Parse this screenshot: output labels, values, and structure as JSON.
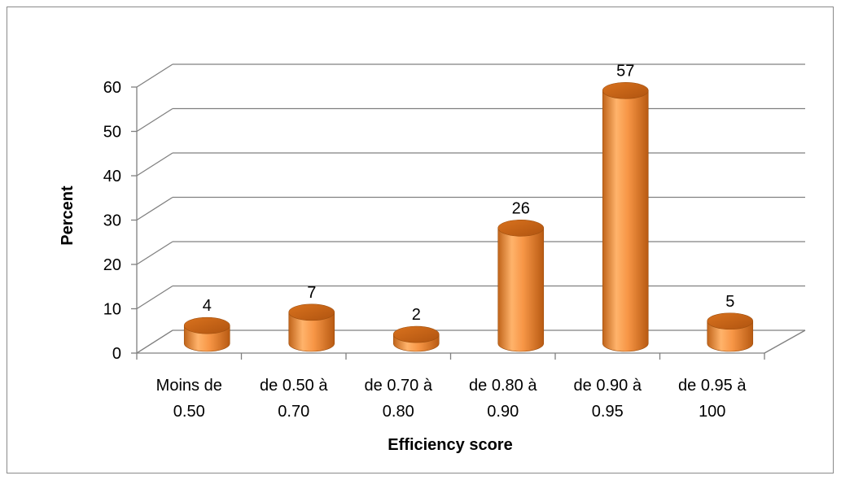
{
  "chart_data": {
    "type": "bar",
    "style": "3d-cylinder",
    "categories": [
      [
        "Moins de",
        "0.50"
      ],
      [
        "de 0.50 à",
        "0.70"
      ],
      [
        "de 0.70 à",
        "0.80"
      ],
      [
        "de 0.80 à",
        "0.90"
      ],
      [
        "de 0.90 à",
        "0.95"
      ],
      [
        "de 0.95 à",
        "100"
      ]
    ],
    "values": [
      4,
      7,
      2,
      26,
      57,
      5
    ],
    "data_labels": [
      "4",
      "7",
      "2",
      "26",
      "57",
      "5"
    ],
    "xlabel": "Efficiency score",
    "ylabel": "Percent",
    "ylim": [
      0,
      60
    ],
    "yticks": [
      "0",
      "10",
      "20",
      "30",
      "40",
      "50",
      "60"
    ],
    "grid": true,
    "legend": "none",
    "colors": {
      "bar_light": "#ffb36b",
      "bar_mid": "#f79646",
      "bar_dark": "#c0641a",
      "bar_top": "#e46c0a",
      "grid": "#808080"
    }
  }
}
